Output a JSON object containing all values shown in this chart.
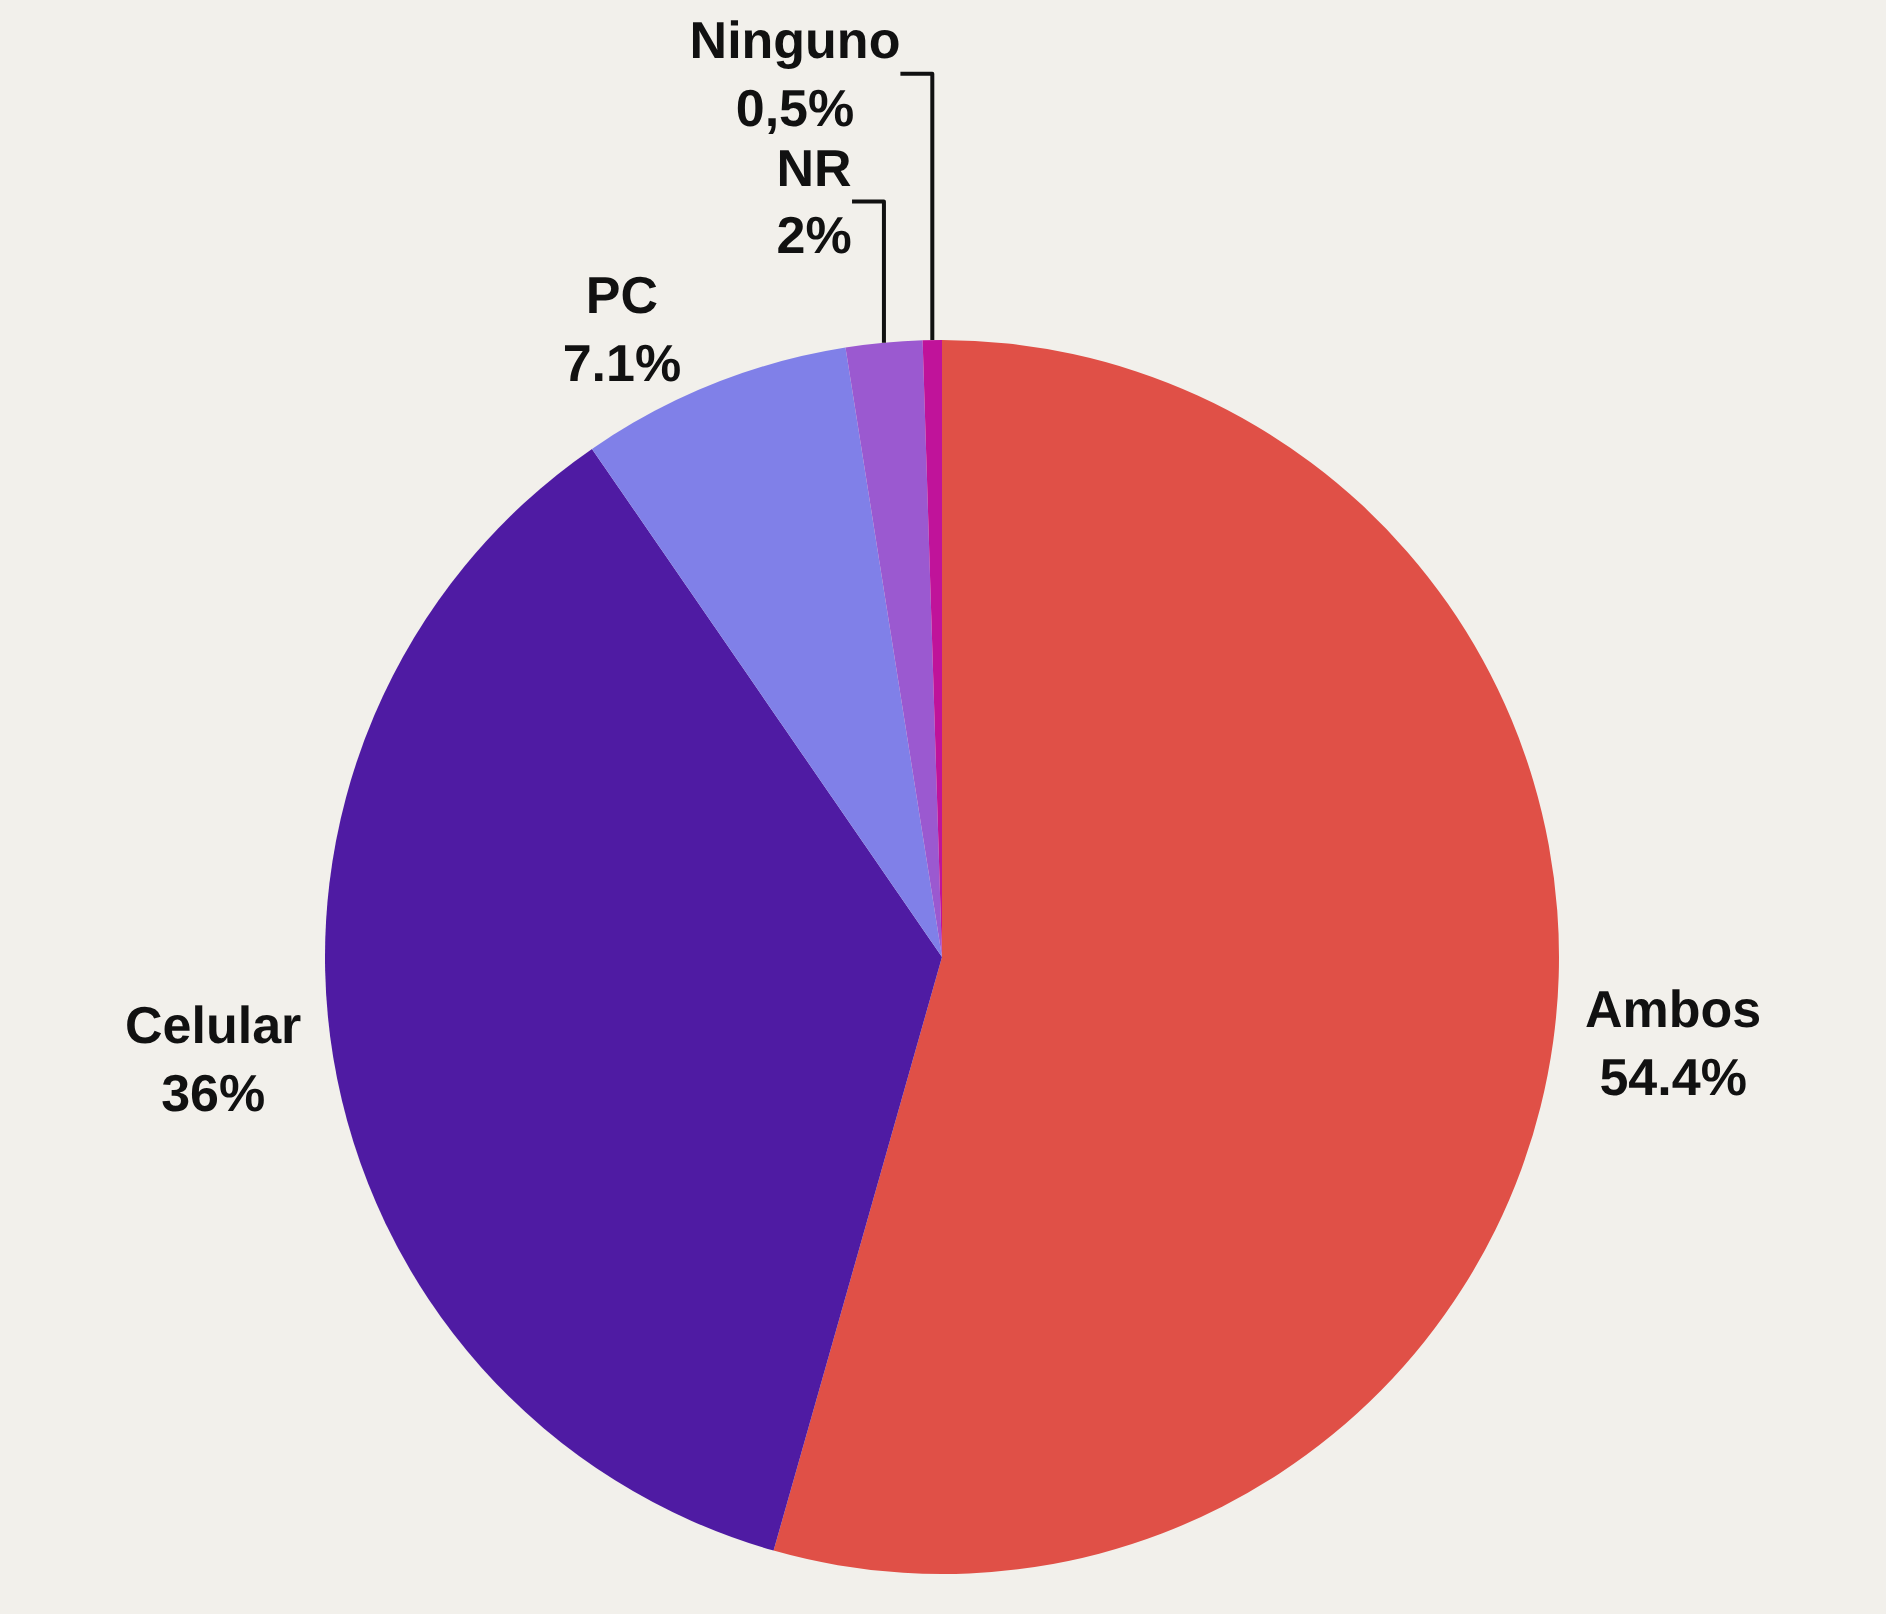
{
  "chart_data": {
    "type": "pie",
    "categories": [
      "Ambos",
      "Celular",
      "PC",
      "NR",
      "Ninguno"
    ],
    "values": [
      54.4,
      36,
      7.1,
      2,
      0.5
    ],
    "value_labels": [
      "54.4%",
      "36%",
      "7.1%",
      "2%",
      "0,5%"
    ],
    "colors": [
      "#e05047",
      "#4f1ba3",
      "#8080e8",
      "#9b59d0",
      "#c0139a"
    ],
    "legend": false
  }
}
